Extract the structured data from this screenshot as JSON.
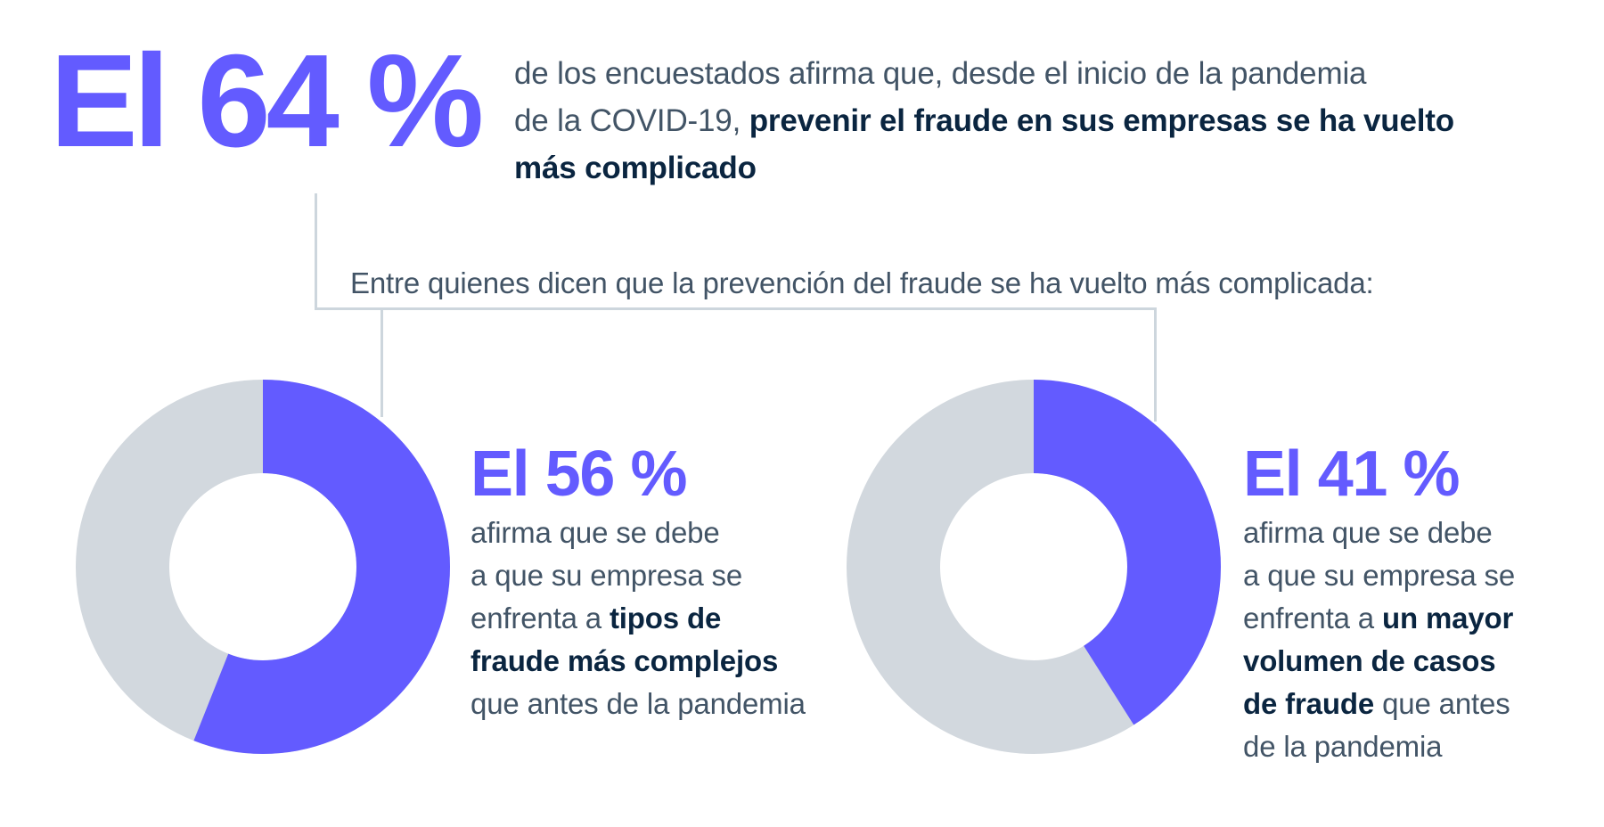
{
  "colors": {
    "accent": "#635BFF",
    "body_text": "#425466",
    "emphasis_text": "#0A2540",
    "donut_remainder": "#D2D8DE",
    "connector_line": "#CDD6DD",
    "background": "#FFFFFF"
  },
  "headline": {
    "stat_label": "El 64 %",
    "description_lines": [
      [
        {
          "t": "de los encuestados afirma que, desde el inicio de la pandemia",
          "b": false
        }
      ],
      [
        {
          "t": "de la COVID-19, ",
          "b": false
        },
        {
          "t": "prevenir el fraude en sus empresas se ha vuelto",
          "b": true
        }
      ],
      [
        {
          "t": "más complicado",
          "b": true
        }
      ]
    ]
  },
  "subtitle": "Entre quienes dicen que la prevención del fraude se ha vuelto más complicada:",
  "panels": [
    {
      "stat_label": "El 56 %",
      "description_lines": [
        [
          {
            "t": "afirma que se debe",
            "b": false
          }
        ],
        [
          {
            "t": "a que su empresa se",
            "b": false
          }
        ],
        [
          {
            "t": "enfrenta a ",
            "b": false
          },
          {
            "t": "tipos de",
            "b": true
          }
        ],
        [
          {
            "t": "fraude más complejos",
            "b": true
          }
        ],
        [
          {
            "t": "que antes de la pandemia",
            "b": false
          }
        ]
      ]
    },
    {
      "stat_label": "El 41 %",
      "description_lines": [
        [
          {
            "t": "afirma que se debe",
            "b": false
          }
        ],
        [
          {
            "t": "a que su empresa se",
            "b": false
          }
        ],
        [
          {
            "t": "enfrenta a ",
            "b": false
          },
          {
            "t": "un mayor",
            "b": true
          }
        ],
        [
          {
            "t": "volumen de casos",
            "b": true
          }
        ],
        [
          {
            "t": "de fraude",
            "b": true
          },
          {
            "t": " que antes",
            "b": false
          }
        ],
        [
          {
            "t": "de la pandemia",
            "b": false
          }
        ]
      ]
    }
  ],
  "chart_data": [
    {
      "type": "pie",
      "subtype": "donut",
      "title": "El 56 %",
      "labels": [
        "Se enfrenta a tipos de fraude más complejos que antes de la pandemia",
        "Resto"
      ],
      "values": [
        56,
        44
      ],
      "colors": [
        "#635BFF",
        "#D2D8DE"
      ],
      "start_angle": "12 o'clock",
      "direction": "clockwise",
      "inner_radius_ratio": 0.5,
      "legend_position": "none"
    },
    {
      "type": "pie",
      "subtype": "donut",
      "title": "El 41 %",
      "labels": [
        "Se enfrenta a un mayor volumen de casos de fraude que antes de la pandemia",
        "Resto"
      ],
      "values": [
        41,
        59
      ],
      "colors": [
        "#635BFF",
        "#D2D8DE"
      ],
      "start_angle": "12 o'clock",
      "direction": "clockwise",
      "inner_radius_ratio": 0.5,
      "legend_position": "none"
    }
  ]
}
